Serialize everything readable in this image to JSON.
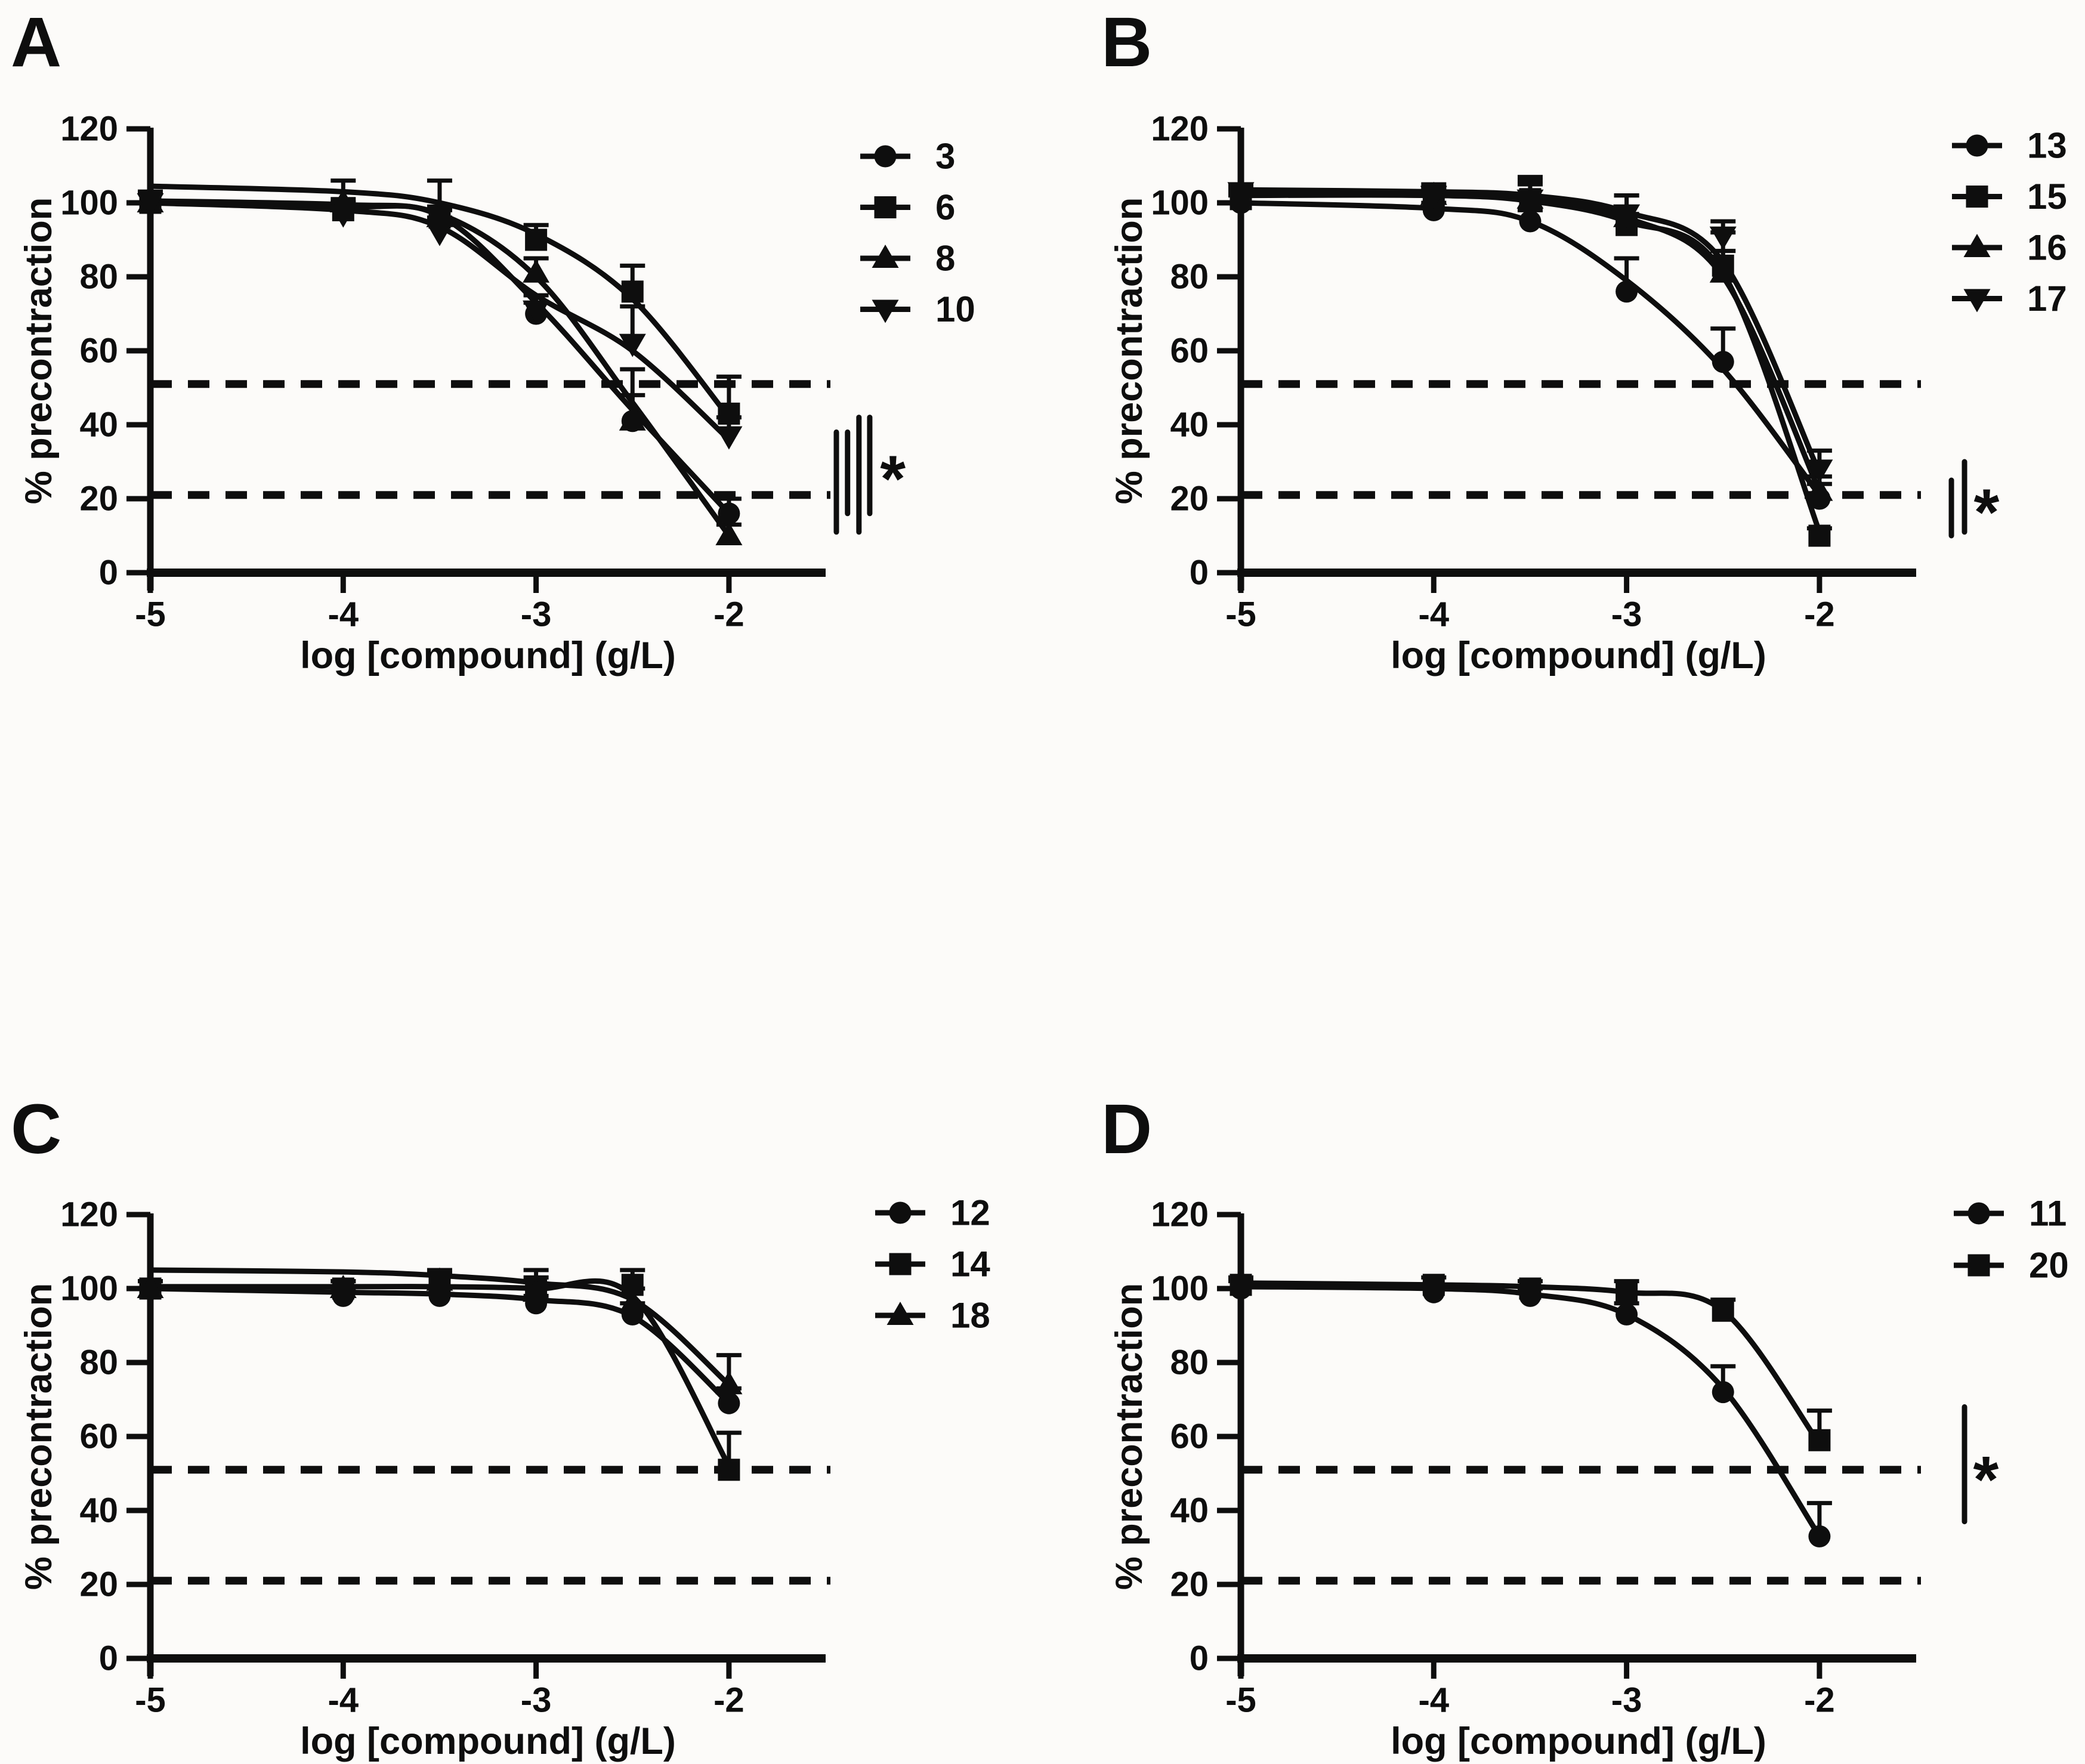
{
  "figure": {
    "background": "#fcfbf9",
    "ink": "#0e0e0e",
    "x_axis_label": "log [compound] (g/L)",
    "y_axis_label": "% precontraction",
    "x_ticks": [
      -5,
      -4,
      -3,
      -2
    ],
    "y_ticks": [
      0,
      20,
      40,
      60,
      80,
      100,
      120
    ],
    "xlim": [
      -5,
      -1.5
    ],
    "ylim": [
      0,
      120
    ],
    "dashed_guides": [
      51,
      21
    ],
    "star_symbol": "*",
    "grid": "off",
    "legend_position": "right-top"
  },
  "chart_data": [
    {
      "label": "A",
      "type": "line",
      "xlabel": "log [compound] (g/L)",
      "ylabel": "% precontraction",
      "x": [
        -5,
        -4,
        -3.5,
        -3,
        -2.5,
        -2
      ],
      "xlim": [
        -5,
        -1.5
      ],
      "ylim": [
        0,
        120
      ],
      "dashed_y": [
        51,
        21
      ],
      "legend": [
        "3",
        "6",
        "8",
        "10"
      ],
      "series": [
        {
          "name": "3",
          "marker": "circle",
          "values": [
            100,
            98,
            95,
            70,
            41,
            16
          ],
          "err_up": [
            3,
            2,
            3,
            3,
            14,
            4
          ],
          "curve": [
            100,
            99,
            96.5,
            73,
            44,
            16
          ]
        },
        {
          "name": "6",
          "marker": "square",
          "values": [
            100,
            98,
            96,
            90,
            76,
            43
          ],
          "err_up": [
            3,
            3,
            3,
            4,
            7,
            10
          ],
          "curve": [
            104.5,
            103,
            100,
            91.5,
            74,
            42
          ]
        },
        {
          "name": "8",
          "marker": "triangle-up",
          "values": [
            100,
            100,
            96,
            81,
            41,
            10
          ],
          "err_up": [
            3,
            6,
            10,
            4,
            7,
            3
          ],
          "curve": [
            100.5,
            99.5,
            97,
            80,
            46,
            10
          ]
        },
        {
          "name": "10",
          "marker": "triangle-down",
          "values": [
            100,
            97,
            92,
            71,
            62,
            37
          ],
          "err_up": [
            3,
            3,
            4,
            4,
            10,
            5
          ],
          "curve": [
            100,
            98,
            93.5,
            75,
            60,
            36
          ]
        }
      ],
      "significance": {
        "symbol": "*",
        "bars": [
          {
            "x": -1.443,
            "y1": 38,
            "y2": 11
          },
          {
            "x": -1.385,
            "y1": 38,
            "y2": 16
          },
          {
            "x": -1.326,
            "y1": 42,
            "y2": 11
          },
          {
            "x": -1.27,
            "y1": 42,
            "y2": 16
          }
        ],
        "star": {
          "x": -1.15,
          "y": 29
        }
      }
    },
    {
      "label": "B",
      "type": "line",
      "xlabel": "log [compound] (g/L)",
      "ylabel": "% precontraction",
      "x": [
        -5,
        -4,
        -3.5,
        -3,
        -2.5,
        -2
      ],
      "xlim": [
        -5,
        -1.5
      ],
      "ylim": [
        0,
        120
      ],
      "dashed_y": [
        51,
        21
      ],
      "legend": [
        "13",
        "15",
        "16",
        "17"
      ],
      "series": [
        {
          "name": "13",
          "marker": "circle",
          "values": [
            100,
            98,
            95,
            76,
            57,
            20
          ],
          "err_up": [
            2,
            2,
            3,
            9,
            9,
            4
          ],
          "curve": [
            100,
            98.5,
            95,
            79,
            55,
            21
          ]
        },
        {
          "name": "15",
          "marker": "square",
          "values": [
            101,
            102,
            101,
            94,
            83,
            10
          ],
          "err_up": [
            2,
            2,
            4,
            3,
            4,
            2
          ],
          "curve": [
            102,
            102,
            100.5,
            95,
            81,
            11
          ]
        },
        {
          "name": "16",
          "marker": "triangle-up",
          "values": [
            102,
            102,
            101,
            96,
            81,
            22
          ],
          "err_up": [
            2,
            2,
            5,
            6,
            11,
            4
          ],
          "curve": [
            102.5,
            102,
            101,
            96,
            80,
            22
          ]
        },
        {
          "name": "17",
          "marker": "triangle-down",
          "values": [
            103,
            102,
            101,
            97,
            91,
            28
          ],
          "err_up": [
            2,
            3,
            6,
            5,
            4,
            5
          ],
          "curve": [
            103.5,
            103,
            102,
            97.5,
            84,
            27
          ]
        }
      ],
      "significance": {
        "symbol": "*",
        "bars": [
          {
            "x": -1.316,
            "y1": 25,
            "y2": 10
          },
          {
            "x": -1.248,
            "y1": 30,
            "y2": 11
          }
        ],
        "star": {
          "x": -1.134,
          "y": 20
        }
      }
    },
    {
      "label": "C",
      "type": "line",
      "xlabel": "log [compound] (g/L)",
      "ylabel": "% precontraction",
      "x": [
        -5,
        -4,
        -3.5,
        -3,
        -2.5,
        -2
      ],
      "xlim": [
        -5,
        -1.5
      ],
      "ylim": [
        0,
        120
      ],
      "dashed_y": [
        51,
        21
      ],
      "legend": [
        "12",
        "14",
        "18"
      ],
      "series": [
        {
          "name": "12",
          "marker": "circle",
          "values": [
            100,
            98,
            98,
            96,
            93,
            69
          ],
          "err_up": [
            2,
            2,
            2,
            2,
            3,
            4
          ],
          "curve": [
            100,
            99,
            98.5,
            97,
            92.5,
            69
          ]
        },
        {
          "name": "14",
          "marker": "square",
          "values": [
            100,
            100,
            101,
            100,
            101,
            51
          ],
          "err_up": [
            2,
            2,
            3,
            5,
            4,
            10
          ],
          "curve": [
            100.5,
            100.5,
            100.5,
            100,
            98,
            52
          ]
        },
        {
          "name": "18",
          "marker": "triangle-up",
          "values": [
            100,
            100,
            102,
            99,
            96,
            74
          ],
          "err_up": [
            2,
            2,
            3,
            4,
            4,
            8
          ],
          "curve": [
            105,
            104.5,
            103.5,
            101.5,
            97,
            74
          ]
        }
      ],
      "significance": null
    },
    {
      "label": "D",
      "type": "line",
      "xlabel": "log [compound] (g/L)",
      "ylabel": "% precontraction",
      "x": [
        -5,
        -4,
        -3.5,
        -3,
        -2.5,
        -2
      ],
      "xlim": [
        -5,
        -1.5
      ],
      "ylim": [
        0,
        120
      ],
      "dashed_y": [
        51,
        21
      ],
      "legend": [
        "11",
        "20"
      ],
      "series": [
        {
          "name": "11",
          "marker": "circle",
          "values": [
            100,
            99,
            98,
            93,
            72,
            33
          ],
          "err_up": [
            2,
            2,
            2,
            3,
            7,
            9
          ],
          "curve": [
            100.5,
            100,
            98.5,
            93,
            73,
            33
          ]
        },
        {
          "name": "20",
          "marker": "square",
          "values": [
            101,
            101,
            100,
            99,
            94,
            59
          ],
          "err_up": [
            2,
            2,
            2,
            3,
            3,
            8
          ],
          "curve": [
            101.5,
            101,
            100.5,
            99,
            94,
            58
          ]
        }
      ],
      "significance": {
        "symbol": "*",
        "bars": [
          {
            "x": -1.248,
            "y1": 68,
            "y2": 37
          }
        ],
        "star": {
          "x": -1.137,
          "y": 52
        }
      }
    }
  ]
}
